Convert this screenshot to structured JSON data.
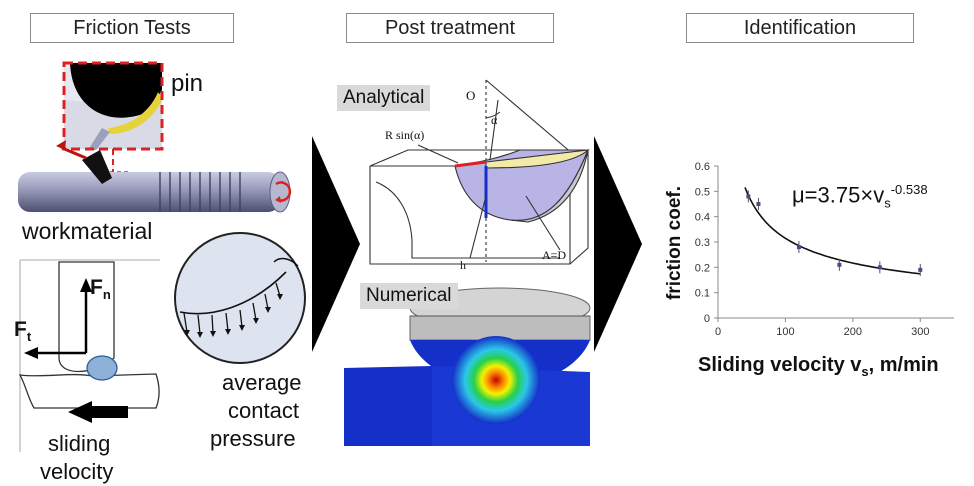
{
  "headers": {
    "friction_tests": "Friction Tests",
    "post_treatment": "Post treatment",
    "identification": "Identification"
  },
  "friction_tests": {
    "pin_label": "pin",
    "workmaterial_label": "workmaterial",
    "fn_label": "F",
    "fn_sub": "n",
    "ft_label": "F",
    "ft_sub": "t",
    "sliding_line1": "sliding",
    "sliding_line2": "velocity",
    "pressure_line1": "average",
    "pressure_line2": "contact",
    "pressure_line3": "pressure"
  },
  "post_treatment": {
    "analytical_label": "Analytical",
    "numerical_label": "Numerical",
    "origin_label": "O",
    "alpha_label": "α",
    "r_sin_label": "R sin(α)",
    "h_label": "h",
    "a_d_label": "A=D"
  },
  "colors": {
    "arrow": "#000000",
    "pin_yellow": "#e6d23a",
    "dashed_red": "#e02020",
    "cap_yellow": "#f3eaa8",
    "cap_lilac": "#b9b4e6",
    "sim_blue": "#1530c8"
  },
  "chart_data": {
    "type": "scatter",
    "xlabel": "Sliding velocity v",
    "xlabel_sub": "s",
    "xlabel_unit": ", m/min",
    "ylabel": "friction coef.",
    "xlim": [
      0,
      350
    ],
    "ylim": [
      0,
      0.6
    ],
    "x_ticks": [
      0,
      100,
      200,
      300
    ],
    "y_ticks": [
      0,
      0.1,
      0.2,
      0.3,
      0.4,
      0.5,
      0.6
    ],
    "grid": false,
    "series": [
      {
        "points": [
          {
            "x": 45,
            "y": 0.48
          },
          {
            "x": 60,
            "y": 0.45
          },
          {
            "x": 120,
            "y": 0.28
          },
          {
            "x": 180,
            "y": 0.21
          },
          {
            "x": 240,
            "y": 0.2
          },
          {
            "x": 300,
            "y": 0.19
          }
        ]
      }
    ],
    "fit": {
      "a": 3.75,
      "b": -0.538
    },
    "equation_main": "μ=3.75×v",
    "equation_sub": "s",
    "equation_sup": "-0.538"
  }
}
